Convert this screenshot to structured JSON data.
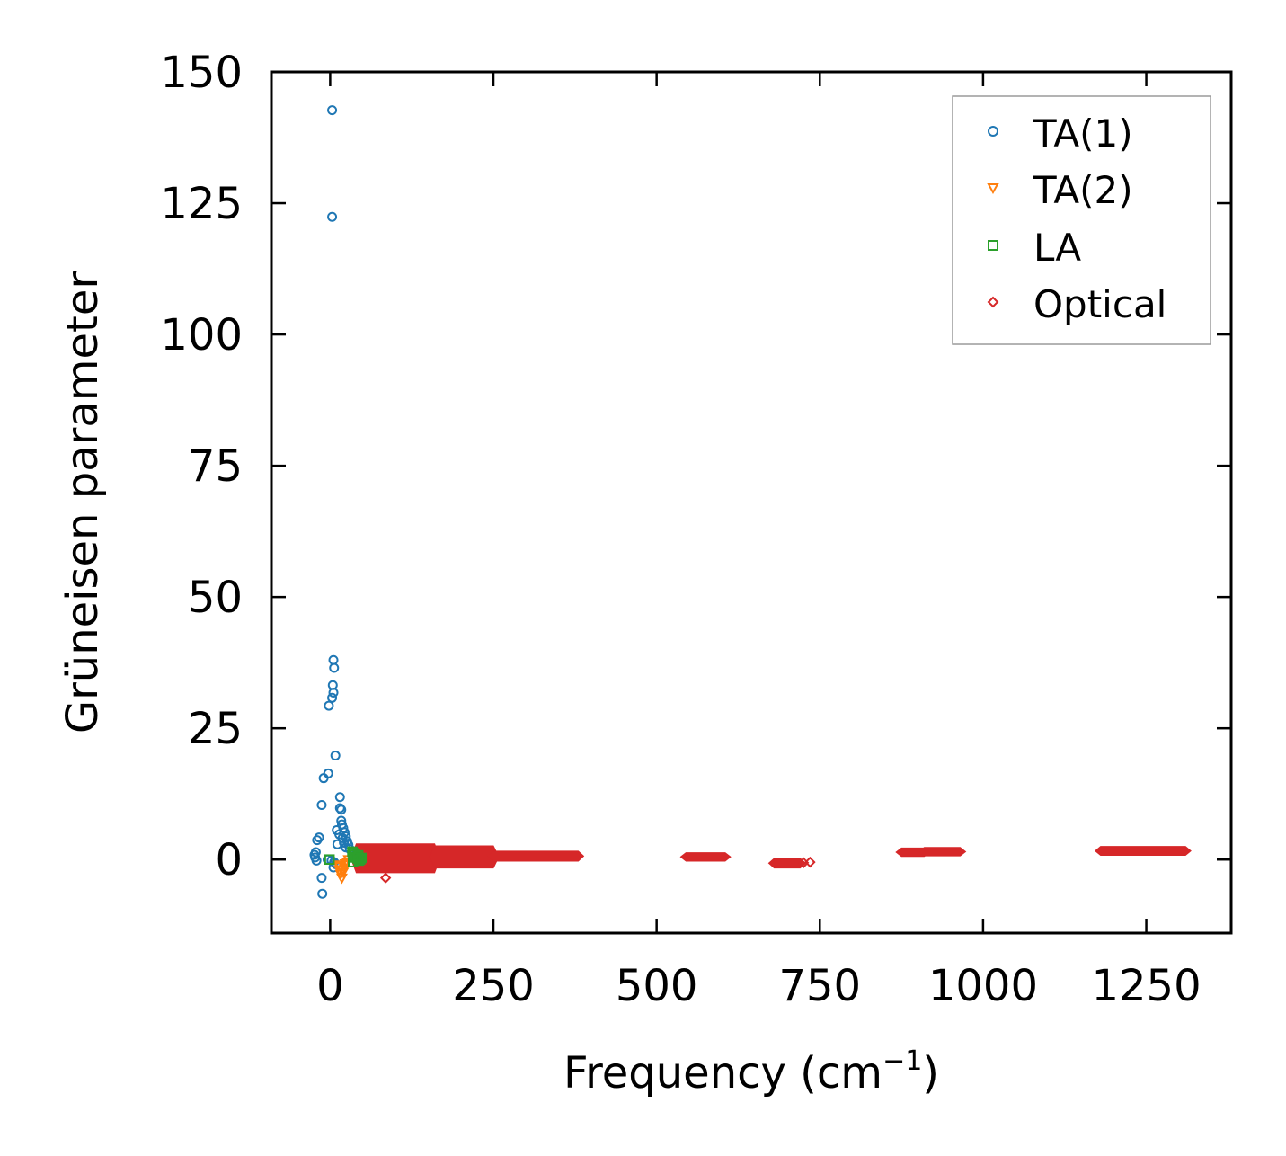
{
  "chart_data": {
    "type": "scatter",
    "xlabel_main": "Frequency (cm",
    "xlabel_sup": "−1",
    "xlabel_tail": ")",
    "ylabel": "Grüneisen parameter",
    "xlim": [
      -90,
      1380
    ],
    "ylim": [
      -14,
      150
    ],
    "xticks": [
      0,
      250,
      500,
      750,
      1000,
      1250
    ],
    "xtick_labels": [
      "0",
      "250",
      "500",
      "750",
      "1000",
      "1250"
    ],
    "yticks": [
      0,
      25,
      50,
      75,
      100,
      125,
      150
    ],
    "ytick_labels": [
      "0",
      "25",
      "50",
      "75",
      "100",
      "125",
      "150"
    ],
    "legend_position": "top-right",
    "series": [
      {
        "name": "TA(1)",
        "marker": "circle",
        "color": "#1f77b4",
        "points": [
          [
            3,
            142.7
          ],
          [
            3,
            122.4
          ],
          [
            5,
            38.0
          ],
          [
            6,
            36.5
          ],
          [
            4,
            33.2
          ],
          [
            5,
            31.8
          ],
          [
            3,
            30.8
          ],
          [
            -2,
            29.3
          ],
          [
            8,
            19.8
          ],
          [
            -3,
            16.4
          ],
          [
            -10,
            15.5
          ],
          [
            15,
            11.9
          ],
          [
            -13,
            10.4
          ],
          [
            15,
            9.8
          ],
          [
            17,
            9.5
          ],
          [
            17,
            7.4
          ],
          [
            18,
            6.7
          ],
          [
            20,
            6.0
          ],
          [
            10,
            5.6
          ],
          [
            22,
            5.2
          ],
          [
            14,
            4.8
          ],
          [
            24,
            4.4
          ],
          [
            19,
            4.1
          ],
          [
            -17,
            4.2
          ],
          [
            -20,
            3.7
          ],
          [
            26,
            3.5
          ],
          [
            21,
            3.2
          ],
          [
            28,
            2.8
          ],
          [
            11,
            2.9
          ],
          [
            24,
            2.3
          ],
          [
            30,
            2.0
          ],
          [
            -22,
            1.4
          ],
          [
            -24,
            0.9
          ],
          [
            -23,
            0.4
          ],
          [
            -21,
            -0.2
          ],
          [
            -4,
            0.0
          ],
          [
            2,
            -0.2
          ],
          [
            6,
            -0.5
          ],
          [
            9,
            -0.9
          ],
          [
            5,
            -1.5
          ],
          [
            -13,
            -3.5
          ],
          [
            -12,
            -6.5
          ]
        ]
      },
      {
        "name": "TA(2)",
        "marker": "triangle-down",
        "color": "#ff7f0e",
        "points": [
          [
            12,
            -1.0
          ],
          [
            14,
            -2.0
          ],
          [
            16,
            -2.8
          ],
          [
            18,
            -3.5
          ],
          [
            20,
            -2.4
          ],
          [
            22,
            -1.6
          ],
          [
            24,
            -1.0
          ],
          [
            26,
            -0.5
          ],
          [
            28,
            0.0
          ],
          [
            15,
            -1.3
          ],
          [
            19,
            -1.9
          ],
          [
            23,
            -0.8
          ]
        ]
      },
      {
        "name": "LA",
        "marker": "square",
        "color": "#2ca02c",
        "points": [
          [
            -1,
            0.0
          ],
          [
            34,
            1.5
          ],
          [
            36,
            1.2
          ],
          [
            38,
            0.9
          ],
          [
            40,
            0.5
          ],
          [
            42,
            0.2
          ],
          [
            44,
            -0.2
          ],
          [
            46,
            0.0
          ],
          [
            35,
            -0.5
          ],
          [
            39,
            0.4
          ],
          [
            43,
            0.8
          ],
          [
            48,
            0.3
          ]
        ]
      },
      {
        "name": "Optical",
        "marker": "diamond",
        "color": "#d62728",
        "points": [
          [
            85,
            -3.5
          ],
          [
            735,
            -0.5
          ],
          [
            725,
            -0.6
          ]
        ],
        "bands": [
          {
            "x": [
              40,
              160
            ],
            "y_top": 3.0,
            "y_bottom": -2.5
          },
          {
            "x": [
              160,
              250
            ],
            "y_top": 2.6,
            "y_bottom": -1.6
          },
          {
            "x": [
              250,
              380
            ],
            "y_top": 1.6,
            "y_bottom": -0.3
          },
          {
            "x": [
              545,
              605
            ],
            "y_top": 1.3,
            "y_bottom": -0.3
          },
          {
            "x": [
              680,
              720
            ],
            "y_top": 0.2,
            "y_bottom": -1.6
          },
          {
            "x": [
              875,
              910
            ],
            "y_top": 2.2,
            "y_bottom": 0.6
          },
          {
            "x": [
              910,
              965
            ],
            "y_top": 2.3,
            "y_bottom": 0.7
          },
          {
            "x": [
              1180,
              1310
            ],
            "y_top": 2.5,
            "y_bottom": 0.8
          }
        ]
      }
    ]
  }
}
